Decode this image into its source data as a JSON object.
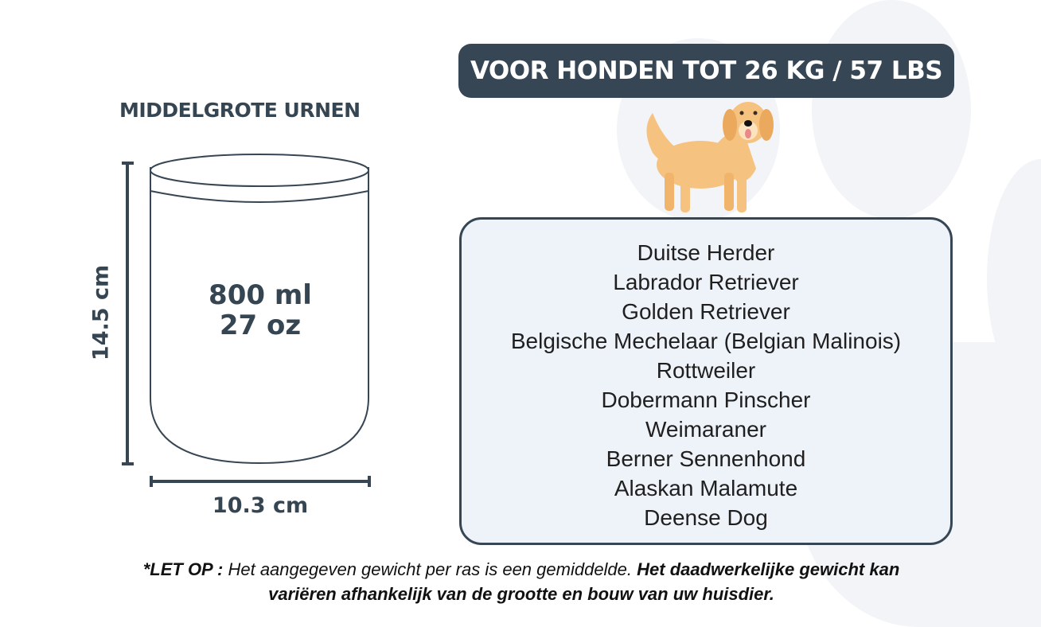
{
  "header": {
    "badge": "VOOR HONDEN TOT 26 KG / 57 LBS",
    "subtitle": "MIDDELGROTE URNEN"
  },
  "jar": {
    "capacity_ml": "800 ml",
    "capacity_oz": "27 oz",
    "height": "14.5 cm",
    "width": "10.3 cm"
  },
  "breeds": [
    "Duitse Herder",
    "Labrador Retriever",
    "Golden Retriever",
    "Belgische Mechelaar (Belgian Malinois)",
    "Rottweiler",
    "Dobermann Pinscher",
    "Weimaraner",
    "Berner Sennenhond",
    "Alaskan Malamute",
    "Deense Dog"
  ],
  "note": {
    "prefix": "*LET OP :",
    "text1": " Het aangegeven gewicht per ras is een gemiddelde. ",
    "bold": "Het daadwerkelijke gewicht kan variëren afhankelijk van de grootte en bouw van uw huisdier."
  },
  "icons": {
    "dog": "golden-retriever-illustration",
    "background": "paw-print-watermark"
  },
  "colors": {
    "dark": "#364654",
    "box": "#eef2f9",
    "dog": "#f6c27f"
  }
}
